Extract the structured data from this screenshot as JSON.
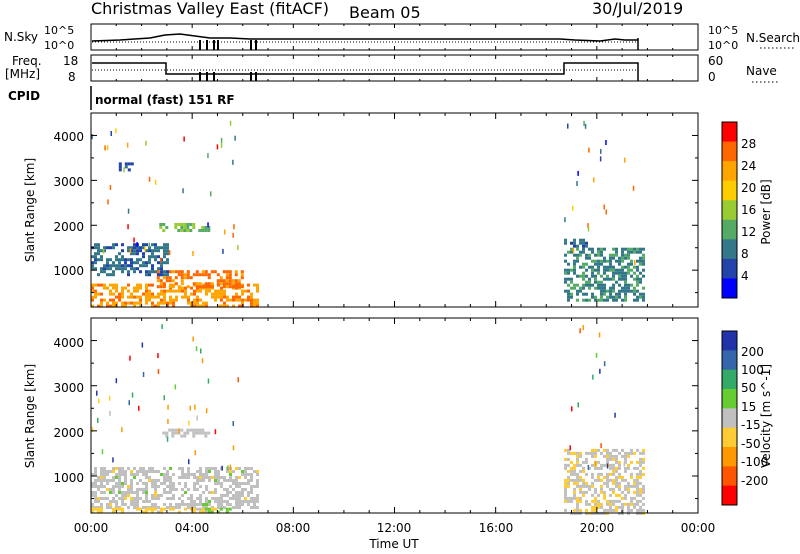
{
  "header": {
    "title": "Christmas Valley East (fitACF)",
    "beam": "Beam 05",
    "date": "30/Jul/2019"
  },
  "nsky_panel": {
    "left_label": "N.Sky",
    "left_ticks": [
      "10^5",
      "10^0"
    ],
    "right_ticks": [
      "10^5",
      "10^0"
    ],
    "right_label": "N.Search"
  },
  "freq_panel": {
    "left_label_1": "Freq.",
    "left_label_2": "[MHz]",
    "left_ticks": [
      "18",
      "8"
    ],
    "right_ticks": [
      "60",
      "0"
    ],
    "right_label": "Nave"
  },
  "cpid": {
    "label": "CPID",
    "value": "normal (fast) 151 RF"
  },
  "x_axis": {
    "label": "Time UT",
    "ticks": [
      "00:00",
      "04:00",
      "08:00",
      "12:00",
      "16:00",
      "20:00",
      "00:00"
    ]
  },
  "power_panel": {
    "ylabel": "Slant Range [km]",
    "yticks": [
      "4000",
      "3000",
      "2000",
      "1000"
    ],
    "colorbar_label": "Power [dB]",
    "colorbar_ticks": [
      "28",
      "24",
      "20",
      "16",
      "12",
      "8",
      "4"
    ],
    "colors": [
      "#ff0000",
      "#ff6600",
      "#ffa500",
      "#ffcc00",
      "#99cc33",
      "#55aa66",
      "#337788",
      "#2244aa",
      "#0000ff"
    ]
  },
  "velocity_panel": {
    "ylabel": "Slant Range [km]",
    "yticks": [
      "4000",
      "3000",
      "2000",
      "1000"
    ],
    "colorbar_label": "Velocity [m s^-1]",
    "colorbar_ticks": [
      "200",
      "100",
      "50",
      "15",
      "-15",
      "-50",
      "-100",
      "-200"
    ],
    "colors": [
      "#2233aa",
      "#3366aa",
      "#33aa66",
      "#66cc33",
      "#c0c0c0",
      "#ffcc33",
      "#ff9900",
      "#ff5500",
      "#ff0000"
    ]
  },
  "chart_data": {
    "type": "heatmap",
    "x_range_hours": [
      0,
      24
    ],
    "y_range_km": [
      180,
      4500
    ],
    "panels": [
      {
        "name": "Power",
        "unit": "dB",
        "patches": [
          {
            "t0": 0.0,
            "t1": 6.6,
            "r0": 200,
            "r1": 700,
            "value": 24
          },
          {
            "t0": 2.6,
            "t1": 6.0,
            "r0": 650,
            "r1": 1000,
            "value": 26
          },
          {
            "t0": 0.0,
            "t1": 3.0,
            "r0": 900,
            "r1": 1600,
            "value": 8
          },
          {
            "t0": 2.7,
            "t1": 4.6,
            "r0": 1850,
            "r1": 2050,
            "value": 14
          },
          {
            "t0": 1.1,
            "t1": 1.6,
            "r0": 3200,
            "r1": 3400,
            "value": 6
          },
          {
            "t0": 18.7,
            "t1": 21.8,
            "r0": 300,
            "r1": 1500,
            "value": 10
          },
          {
            "t0": 18.7,
            "t1": 19.6,
            "r0": 1500,
            "r1": 1700,
            "value": 8
          }
        ]
      },
      {
        "name": "Velocity",
        "unit": "m s^-1",
        "patches": [
          {
            "t0": 0.0,
            "t1": 6.6,
            "r0": 300,
            "r1": 1200,
            "value": 0
          },
          {
            "t0": 0.0,
            "t1": 5.0,
            "r0": 180,
            "r1": 300,
            "value": -50
          },
          {
            "t0": 4.5,
            "t1": 5.5,
            "r0": 200,
            "r1": 300,
            "value": 50
          },
          {
            "t0": 2.7,
            "t1": 4.6,
            "r0": 1900,
            "r1": 2050,
            "value": 0
          },
          {
            "t0": 18.7,
            "t1": 21.8,
            "r0": 180,
            "r1": 1600,
            "value": -15
          }
        ]
      }
    ]
  }
}
